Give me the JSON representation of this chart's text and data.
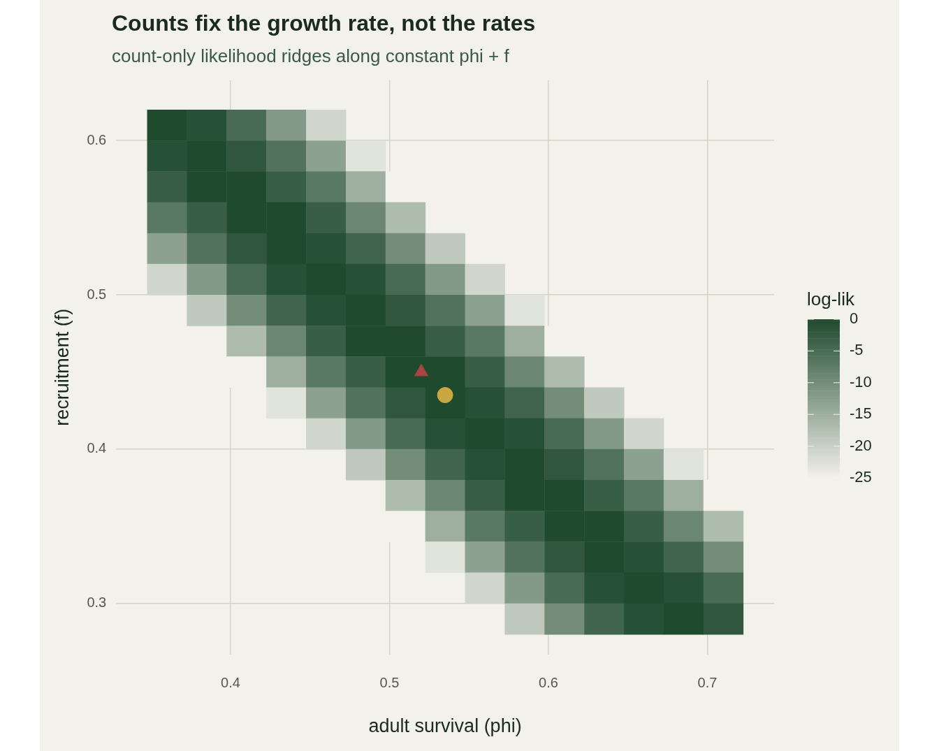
{
  "chart_data": {
    "type": "heatmap",
    "title": "Counts fix the growth rate, not the rates",
    "subtitle": "count-only likelihood ridges along constant phi + f",
    "xlabel": "adult survival (phi)",
    "ylabel": "recruitment (f)",
    "clabel": "log-lik",
    "x": [
      0.36,
      0.385,
      0.41,
      0.435,
      0.46,
      0.485,
      0.51,
      0.535,
      0.56,
      0.585,
      0.61,
      0.635,
      0.66,
      0.685,
      0.71
    ],
    "y": [
      0.61,
      0.59,
      0.57,
      0.55,
      0.53,
      0.51,
      0.49,
      0.47,
      0.45,
      0.43,
      0.41,
      0.39,
      0.37,
      0.35,
      0.33,
      0.31,
      0.29
    ],
    "cells": [
      [
        0,
        -1,
        -5,
        -12,
        -21,
        null,
        null,
        null,
        null,
        null,
        null,
        null,
        null,
        null,
        null
      ],
      [
        -1,
        0,
        -2,
        -6,
        -13,
        -23,
        null,
        null,
        null,
        null,
        null,
        null,
        null,
        null,
        null
      ],
      [
        -3,
        0,
        0,
        -3,
        -7,
        -15,
        -25,
        null,
        null,
        null,
        null,
        null,
        null,
        null,
        null
      ],
      [
        -7,
        -3,
        0,
        0,
        -3,
        -9,
        -17,
        null,
        null,
        null,
        null,
        null,
        null,
        null,
        null
      ],
      [
        -13,
        -6,
        -2,
        0,
        -1,
        -4,
        -10,
        -19,
        null,
        null,
        null,
        null,
        null,
        null,
        null
      ],
      [
        -21,
        -12,
        -5,
        -1,
        0,
        -1,
        -5,
        -12,
        -21,
        null,
        null,
        null,
        null,
        null,
        null
      ],
      [
        null,
        -19,
        -10,
        -4,
        -1,
        0,
        -2,
        -6,
        -13,
        -23,
        null,
        null,
        null,
        null,
        null
      ],
      [
        null,
        null,
        -17,
        -9,
        -3,
        0,
        0,
        -3,
        -7,
        -15,
        -25,
        null,
        null,
        null,
        null
      ],
      [
        null,
        null,
        -25,
        -15,
        -7,
        -3,
        0,
        0,
        -3,
        -9,
        -17,
        null,
        null,
        null,
        null
      ],
      [
        null,
        null,
        null,
        -23,
        -13,
        -6,
        -2,
        0,
        -1,
        -4,
        -10,
        -19,
        null,
        null,
        null
      ],
      [
        null,
        null,
        null,
        null,
        -21,
        -12,
        -5,
        -1,
        0,
        -1,
        -5,
        -12,
        -21,
        null,
        null
      ],
      [
        null,
        null,
        null,
        null,
        null,
        -19,
        -10,
        -4,
        -1,
        0,
        -2,
        -6,
        -13,
        -23,
        null
      ],
      [
        null,
        null,
        null,
        null,
        null,
        null,
        -17,
        -9,
        -3,
        0,
        0,
        -3,
        -7,
        -15,
        -25
      ],
      [
        null,
        null,
        null,
        null,
        null,
        null,
        -25,
        -15,
        -7,
        -3,
        0,
        0,
        -3,
        -9,
        -17
      ],
      [
        null,
        null,
        null,
        null,
        null,
        null,
        null,
        -23,
        -13,
        -6,
        -2,
        0,
        -1,
        -4,
        -10
      ],
      [
        null,
        null,
        null,
        null,
        null,
        null,
        null,
        null,
        -21,
        -12,
        -5,
        -1,
        0,
        -1,
        -5
      ],
      [
        null,
        null,
        null,
        null,
        null,
        null,
        null,
        null,
        null,
        -19,
        -10,
        -4,
        -1,
        0,
        -2
      ]
    ],
    "clim": [
      -25,
      0
    ],
    "cticks": [
      0,
      -5,
      -10,
      -15,
      -20,
      -25
    ],
    "colors": [
      "#f2f1ea",
      "#1f4a2e"
    ],
    "series": [
      {
        "type": "scatter",
        "color": "#a94442",
        "marker": "triangle",
        "x": [
          0.52
        ],
        "values": [
          0.45
        ]
      },
      {
        "type": "scatter",
        "color": "#c9a840",
        "marker": "circle",
        "x": [
          0.535
        ],
        "values": [
          0.435
        ]
      }
    ],
    "xlim": [
      0.328,
      0.742
    ],
    "ylim": [
      0.267,
      0.639
    ],
    "xticks": [
      0.4,
      0.5,
      0.6,
      0.7
    ],
    "yticks": [
      0.3,
      0.4,
      0.5,
      0.6
    ],
    "grid": true
  }
}
